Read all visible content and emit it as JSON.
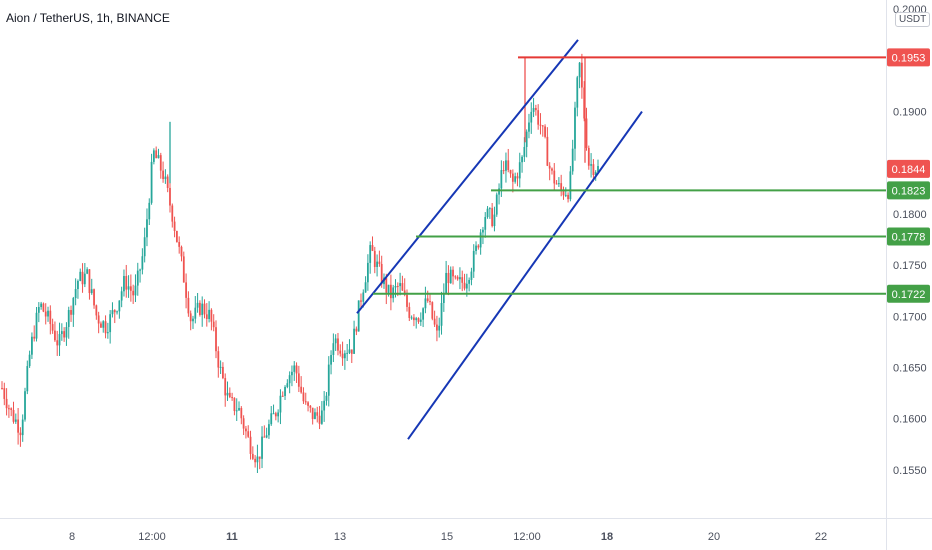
{
  "header": {
    "title": "Aion / TetherUS, 1h, BINANCE",
    "currency_badge": "USDT"
  },
  "colors": {
    "up": "#26a69a",
    "down": "#ef5350",
    "channel": "#1637b5",
    "resistance": "#e53935",
    "support": "#43a047",
    "label_red": "#ef5350",
    "label_green": "#43a047"
  },
  "chart_data": {
    "type": "candlestick",
    "title": "Aion / TetherUS, 1h, BINANCE",
    "y_axis": {
      "unit": "USDT",
      "ylim": [
        0.1503,
        0.2009
      ],
      "ticks": [
        "0.1550",
        "0.1600",
        "0.1650",
        "0.1700",
        "0.1750",
        "0.1800",
        "0.1900",
        "0.2000"
      ]
    },
    "x_axis": {
      "ticks": [
        "8",
        "12:00",
        "11",
        "13",
        "15",
        "12:00",
        "18",
        "20",
        "22"
      ]
    },
    "price_levels": [
      {
        "value": 0.1953,
        "label": "0.1953",
        "kind": "resistance"
      },
      {
        "value": 0.1823,
        "label": "0.1823",
        "kind": "support"
      },
      {
        "value": 0.1778,
        "label": "0.1778",
        "kind": "support"
      },
      {
        "value": 0.1722,
        "label": "0.1722",
        "kind": "support"
      }
    ],
    "last_price": {
      "value": 0.1844,
      "label": "0.1844"
    },
    "price_path": [
      0.163,
      0.1605,
      0.159,
      0.1668,
      0.1712,
      0.1695,
      0.1672,
      0.17,
      0.1735,
      0.174,
      0.17,
      0.169,
      0.1708,
      0.1735,
      0.172,
      0.1765,
      0.186,
      0.184,
      0.18,
      0.175,
      0.1695,
      0.171,
      0.17,
      0.165,
      0.1615,
      0.161,
      0.158,
      0.156,
      0.1588,
      0.1608,
      0.164,
      0.165,
      0.1612,
      0.1602,
      0.1605,
      0.168,
      0.1668,
      0.167,
      0.1722,
      0.1765,
      0.174,
      0.172,
      0.173,
      0.1705,
      0.17,
      0.1715,
      0.168,
      0.1742,
      0.173,
      0.1735,
      0.176,
      0.18,
      0.1795,
      0.185,
      0.183,
      0.1853,
      0.191,
      0.1885,
      0.184,
      0.1823,
      0.1823,
      0.195,
      0.185,
      0.1844
    ],
    "price_marks_count": 260,
    "channel": {
      "upper": [
        [
          0.1703,
          0.197
        ]
      ],
      "lower": [
        [
          0.158,
          0.19
        ]
      ]
    }
  }
}
